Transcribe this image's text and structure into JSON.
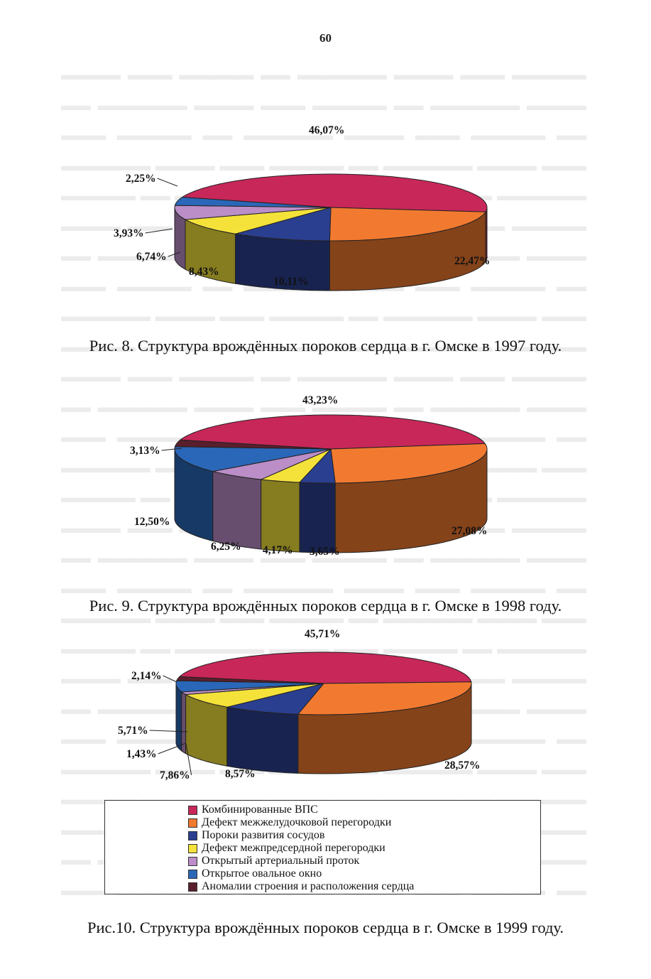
{
  "page_number": "60",
  "colors": {
    "Комбинированные ВПС": "#c8275a",
    "Дефект межжелудочковой перегородки": "#f27a30",
    "Пороки развития сосудов": "#2b3f90",
    "Дефект межпредсердной перегородки": "#f4e23a",
    "Открытый артериальный проток": "#bb8ec8",
    "Открытое овальное окно": "#2a67b8",
    "Аномалии строения и расположения сердца": "#5a1e2c"
  },
  "legend": {
    "items": [
      {
        "label": "Комбинированные ВПС",
        "color": "#c8275a"
      },
      {
        "label": "Дефект межжелудочковой перегородки",
        "color": "#f27a30"
      },
      {
        "label": "Пороки развития сосудов",
        "color": "#2b3f90"
      },
      {
        "label": "Дефект межпредсердной перегородки",
        "color": "#f4e23a"
      },
      {
        "label": "Открытый артериальный проток",
        "color": "#bb8ec8"
      },
      {
        "label": "Открытое овальное окно",
        "color": "#2a67b8"
      },
      {
        "label": "Аномалии строения и расположения сердца",
        "color": "#5a1e2c"
      }
    ]
  },
  "chart_data": [
    {
      "type": "pie",
      "title": "Рис. 8. Структура врождённых пороков сердца в г. Омске в 1997 году.",
      "categories": [
        "Комбинированные ВПС",
        "Дефект межжелудочковой перегородки",
        "Пороки развития сосудов",
        "Дефект межпредсердной перегородки",
        "Открытый артериальный проток",
        "Открытое овальное окно"
      ],
      "values": [
        46.07,
        22.47,
        10.11,
        8.43,
        6.74,
        3.93
      ],
      "labels": [
        "46,07%",
        "22,47%",
        "10,11%",
        "8,43%",
        "6,74%",
        "3,93%"
      ],
      "extra_labels": [
        "2,25%"
      ]
    },
    {
      "type": "pie",
      "title": "Рис. 9. Структура врождённых пороков сердца в г. Омске в 1998 году.",
      "categories": [
        "Комбинированные ВПС",
        "Дефект межжелудочковой перегородки",
        "Пороки развития сосудов",
        "Дефект межпредсердной перегородки",
        "Открытый артериальный проток",
        "Открытое овальное окно",
        "Аномалии строения и расположения сердца"
      ],
      "values": [
        43.23,
        27.08,
        3.65,
        4.17,
        6.25,
        12.5,
        3.13
      ],
      "labels": [
        "43,23%",
        "27,08%",
        "3,65%",
        "4,17%",
        "6,25%",
        "12,50%",
        "3,13%"
      ]
    },
    {
      "type": "pie",
      "title": "Рис.10. Структура врождённых пороков сердца в г. Омске в 1999 году.",
      "categories": [
        "Комбинированные ВПС",
        "Дефект межжелудочковой перегородки",
        "Пороки развития сосудов",
        "Дефект межпредсердной перегородки",
        "Открытый артериальный проток",
        "Открытое овальное окно",
        "Аномалии строения и расположения сердца"
      ],
      "values": [
        45.71,
        28.57,
        8.57,
        7.86,
        1.43,
        5.71,
        2.14
      ],
      "labels": [
        "45,71%",
        "28,57%",
        "8,57%",
        "7,86%",
        "1,43%",
        "5,71%",
        "2,14%"
      ]
    }
  ]
}
